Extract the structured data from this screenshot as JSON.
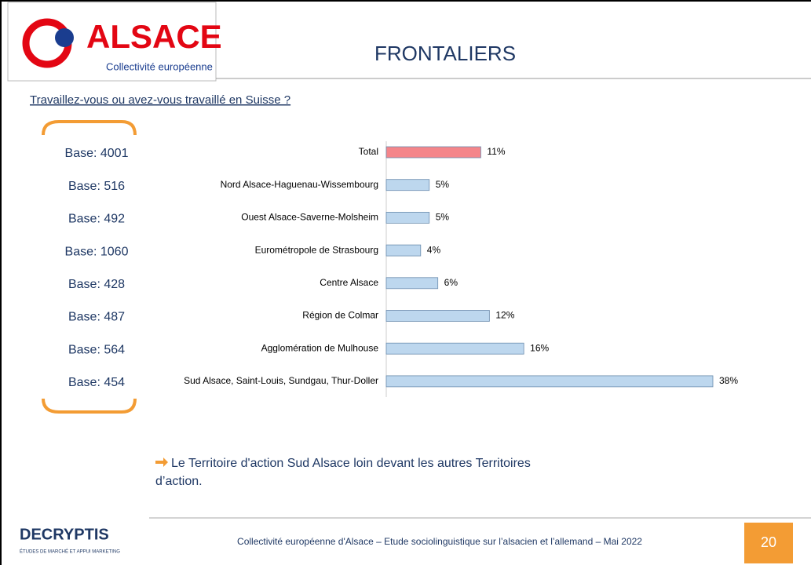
{
  "logo": {
    "name": "ALSACE",
    "tagline": "Collectivité européenne"
  },
  "title": "FRONTALIERS",
  "question": "Travaillez-vous ou avez-vous travaillé en Suisse ?",
  "bases": [
    "Base: 4001",
    "Base: 516",
    "Base: 492",
    "Base: 1060",
    "Base: 428",
    "Base: 487",
    "Base: 564",
    "Base: 454"
  ],
  "chart_data": {
    "type": "bar",
    "orientation": "horizontal",
    "categories": [
      "Total",
      "Nord Alsace-Haguenau-Wissembourg",
      "Ouest Alsace-Saverne-Molsheim",
      "Eurométropole de Strasbourg",
      "Centre Alsace",
      "Région de Colmar",
      "Agglomération de Mulhouse",
      "Sud Alsace, Saint-Louis, Sundgau, Thur-Doller"
    ],
    "values": [
      11,
      5,
      5,
      4,
      6,
      12,
      16,
      38
    ],
    "value_labels": [
      "11%",
      "5%",
      "5%",
      "4%",
      "6%",
      "12%",
      "16%",
      "38%"
    ],
    "colors": [
      "#f4858a",
      "#bdd7ee",
      "#bdd7ee",
      "#bdd7ee",
      "#bdd7ee",
      "#bdd7ee",
      "#bdd7ee",
      "#bdd7ee"
    ],
    "xlim": [
      0,
      38
    ]
  },
  "note": [
    "Le Territoire d'action Sud Alsace loin devant les autres Territoires",
    "d’action."
  ],
  "footer": {
    "brand": "DECRYPTIS",
    "brand_tagline": "ÉTUDES DE MARCHÉ ET APPUI MARKETING",
    "text": "Collectivité européenne d'Alsace – Etude sociolinguistique sur l’alsacien et l’allemand – Mai 2022",
    "page": "20"
  }
}
